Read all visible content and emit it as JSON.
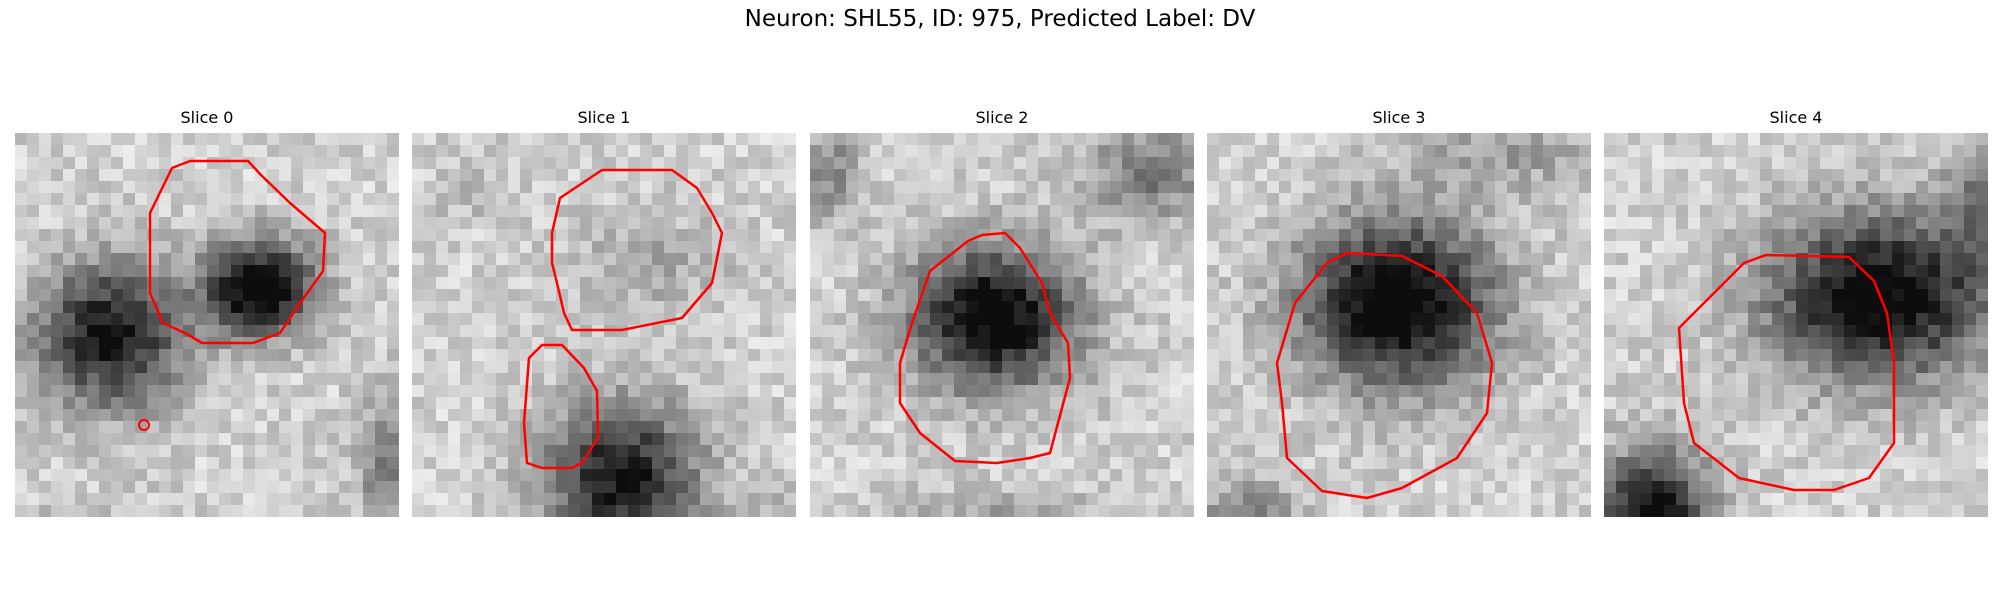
{
  "figure": {
    "title": "Neuron: SHL55, ID: 975, Predicted Label: DV"
  },
  "colors": {
    "contour": "#ff0000",
    "background": "#ffffff"
  },
  "panels": [
    {
      "label": "Slice 0"
    },
    {
      "label": "Slice 1"
    },
    {
      "label": "Slice 2"
    },
    {
      "label": "Slice 3"
    },
    {
      "label": "Slice 4"
    }
  ]
}
